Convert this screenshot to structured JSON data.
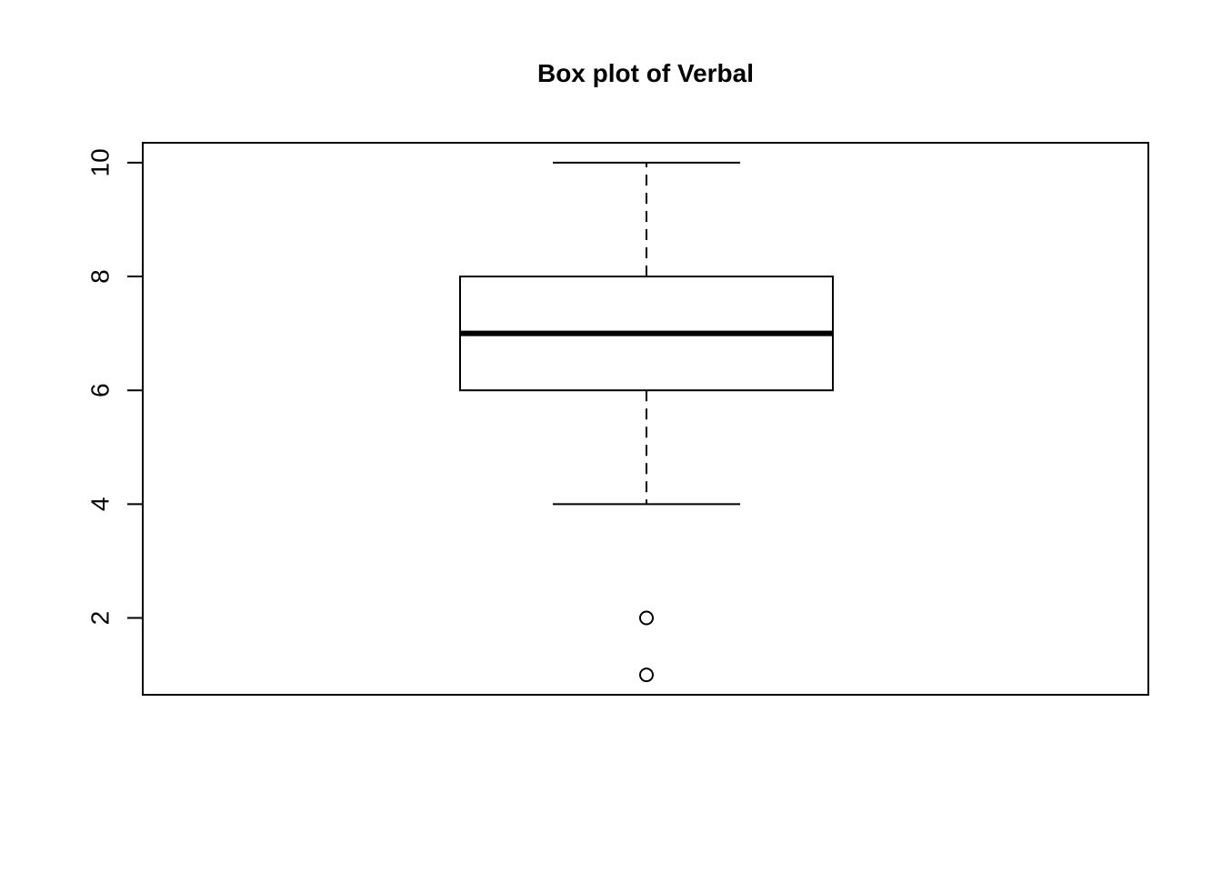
{
  "chart_data": {
    "type": "boxplot",
    "title": "Box plot of Verbal",
    "xlabel": "",
    "ylabel": "",
    "ylim": [
      0.65,
      10.35
    ],
    "yticks": [
      2,
      4,
      6,
      8,
      10
    ],
    "ytick_labels": [
      "2",
      "4",
      "6",
      "8",
      "10"
    ],
    "grid": false,
    "boxes": [
      {
        "whisker_low": 4,
        "q1": 6,
        "median": 7,
        "q3": 8,
        "whisker_high": 10,
        "outliers": [
          2,
          1
        ]
      }
    ],
    "colors": {
      "stroke": "#000000",
      "box_fill": "#ffffff",
      "background": "#ffffff"
    }
  }
}
